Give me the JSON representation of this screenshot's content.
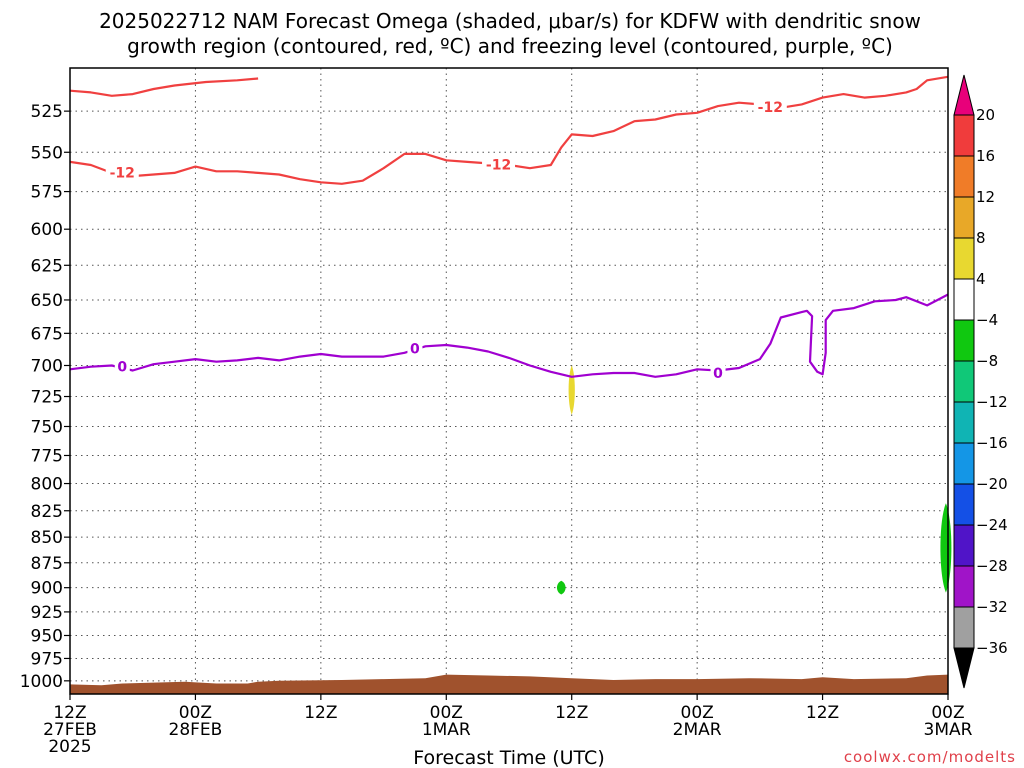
{
  "title_line1": "2025022712 NAM Forecast Omega (shaded, μbar/s) for KDFW with dendritic snow",
  "title_line2": "growth region (contoured, red, ºC) and freezing level (contoured, purple, ºC)",
  "credit": "coolwx.com/modelts",
  "chart_data": {
    "type": "contour",
    "title": "2025022712 NAM Forecast Omega (shaded, μbar/s) for KDFW with dendritic snow growth region (contoured, red, ºC) and freezing level (contoured, purple, ºC)",
    "xlabel": "Forecast Time (UTC)",
    "ylabel": "",
    "x_range_hours": [
      0,
      84
    ],
    "x_ticks": [
      {
        "hour": 0,
        "lines": [
          "12Z",
          "27FEB",
          "2025"
        ]
      },
      {
        "hour": 12,
        "lines": [
          "00Z",
          "28FEB"
        ]
      },
      {
        "hour": 24,
        "lines": [
          "12Z"
        ]
      },
      {
        "hour": 36,
        "lines": [
          "00Z",
          "1MAR"
        ]
      },
      {
        "hour": 48,
        "lines": [
          "12Z"
        ]
      },
      {
        "hour": 60,
        "lines": [
          "00Z",
          "2MAR"
        ]
      },
      {
        "hour": 72,
        "lines": [
          "12Z"
        ]
      },
      {
        "hour": 84,
        "lines": [
          "00Z",
          "3MAR"
        ]
      }
    ],
    "y_axis": "pressure_hPa",
    "y_range": [
      1015,
      500
    ],
    "y_ticks": [
      525,
      550,
      575,
      600,
      625,
      650,
      675,
      700,
      725,
      750,
      775,
      800,
      825,
      850,
      875,
      900,
      925,
      950,
      975,
      1000
    ],
    "grid": true,
    "colorbar": {
      "label_values": [
        20,
        16,
        12,
        8,
        4,
        -4,
        -8,
        -12,
        -16,
        -20,
        -24,
        -28,
        -32,
        -36
      ],
      "colors": [
        "#e8007a",
        "#f03c3c",
        "#f07c28",
        "#e8a828",
        "#e8d830",
        "#ffffff",
        "#10c810",
        "#10c878",
        "#10b4b4",
        "#1496e6",
        "#1450e6",
        "#5014c8",
        "#a014c8",
        "#a0a0a0",
        "#000000"
      ]
    },
    "series": [
      {
        "name": "-12",
        "color": "#f04040",
        "points": [
          [
            0,
            513
          ],
          [
            2,
            514
          ],
          [
            4,
            516
          ],
          [
            6,
            515
          ],
          [
            8,
            512
          ],
          [
            10,
            510
          ],
          [
            13,
            508
          ],
          [
            16,
            507
          ],
          [
            18,
            506
          ]
        ]
      },
      {
        "name": "-12",
        "color": "#f04040",
        "points": [
          [
            0,
            556
          ],
          [
            2,
            558
          ],
          [
            4,
            563
          ],
          [
            6,
            565
          ],
          [
            8,
            564
          ],
          [
            10,
            563
          ],
          [
            12,
            559
          ],
          [
            14,
            562
          ],
          [
            16,
            562
          ],
          [
            18,
            563
          ],
          [
            20,
            564
          ],
          [
            22,
            567
          ],
          [
            24,
            569
          ],
          [
            26,
            570
          ],
          [
            28,
            568
          ],
          [
            30,
            560
          ],
          [
            32,
            551
          ],
          [
            34,
            551
          ],
          [
            36,
            555
          ],
          [
            38,
            556
          ],
          [
            40,
            557
          ],
          [
            42,
            558
          ],
          [
            44,
            560
          ],
          [
            46,
            558
          ],
          [
            47,
            547
          ],
          [
            48,
            539
          ],
          [
            50,
            540
          ],
          [
            52,
            537
          ],
          [
            54,
            531
          ],
          [
            56,
            530
          ],
          [
            58,
            527
          ],
          [
            60,
            526
          ],
          [
            62,
            522
          ],
          [
            64,
            520
          ],
          [
            66,
            521
          ],
          [
            68,
            523
          ],
          [
            70,
            521
          ],
          [
            72,
            517
          ],
          [
            74,
            515
          ],
          [
            76,
            517
          ],
          [
            78,
            516
          ],
          [
            80,
            514
          ],
          [
            81,
            512
          ],
          [
            82,
            507
          ],
          [
            84,
            505
          ]
        ]
      },
      {
        "name": "0",
        "color": "#a000d0",
        "points": [
          [
            0,
            703
          ],
          [
            2,
            701
          ],
          [
            4,
            700
          ],
          [
            6,
            704
          ],
          [
            8,
            699
          ],
          [
            10,
            697
          ],
          [
            12,
            695
          ],
          [
            14,
            697
          ],
          [
            16,
            696
          ],
          [
            18,
            694
          ],
          [
            20,
            696
          ],
          [
            22,
            693
          ],
          [
            24,
            691
          ],
          [
            26,
            693
          ],
          [
            28,
            693
          ],
          [
            30,
            693
          ],
          [
            32,
            690
          ],
          [
            34,
            685
          ],
          [
            36,
            684
          ],
          [
            38,
            686
          ],
          [
            40,
            689
          ],
          [
            42,
            694
          ],
          [
            44,
            700
          ],
          [
            46,
            705
          ],
          [
            48,
            709
          ],
          [
            50,
            707
          ],
          [
            52,
            706
          ],
          [
            54,
            706
          ],
          [
            56,
            709
          ],
          [
            58,
            707
          ],
          [
            60,
            703
          ],
          [
            62,
            704
          ],
          [
            64,
            702
          ],
          [
            66,
            695
          ],
          [
            67,
            683
          ],
          [
            68,
            663
          ],
          [
            70,
            659
          ],
          [
            70.5,
            658
          ],
          [
            71,
            662
          ],
          [
            70.8,
            697
          ],
          [
            71.5,
            705
          ],
          [
            72,
            707
          ],
          [
            72.3,
            690
          ],
          [
            72.3,
            665
          ],
          [
            73,
            658
          ],
          [
            75,
            656
          ],
          [
            77,
            651
          ],
          [
            79,
            650
          ],
          [
            80,
            648
          ],
          [
            82,
            654
          ],
          [
            83,
            650
          ],
          [
            84,
            646
          ]
        ]
      }
    ],
    "contour_labels": [
      {
        "text": "-12",
        "hour": 5,
        "hPa": 562
      },
      {
        "text": "-12",
        "hour": 41,
        "hPa": 557
      },
      {
        "text": "-12",
        "hour": 67,
        "hPa": 522
      },
      {
        "text": "0",
        "hour": 5,
        "hPa": 700
      },
      {
        "text": "0",
        "hour": 33,
        "hPa": 686
      },
      {
        "text": "0",
        "hour": 62,
        "hPa": 705
      }
    ],
    "shaded_regions": [
      {
        "category": "4 to 8",
        "color": "#e8d830",
        "center_hour": 48,
        "hPa_top": 700,
        "hPa_bottom": 740,
        "half_width_hours": 0.4
      },
      {
        "category": "-4 to -8",
        "color": "#10c810",
        "center_hour": 47,
        "hPa_top": 893,
        "hPa_bottom": 907,
        "half_width_hours": 0.55
      },
      {
        "category": "-4 to -8",
        "color": "#10c810",
        "center_hour": 83.8,
        "hPa_top": 818,
        "hPa_bottom": 905,
        "half_width_hours": 0.7
      }
    ],
    "terrain": {
      "color": "#a0522d",
      "points": [
        [
          0,
          1004
        ],
        [
          3,
          1005
        ],
        [
          5,
          1003
        ],
        [
          8,
          1002
        ],
        [
          11,
          1001
        ],
        [
          14,
          1003
        ],
        [
          17,
          1003
        ],
        [
          18,
          1001
        ],
        [
          20,
          1000
        ],
        [
          26,
          999
        ],
        [
          30,
          998
        ],
        [
          34,
          997
        ],
        [
          36,
          993
        ],
        [
          40,
          994
        ],
        [
          44,
          995
        ],
        [
          48,
          997
        ],
        [
          52,
          999
        ],
        [
          56,
          998
        ],
        [
          60,
          998
        ],
        [
          65,
          997
        ],
        [
          70,
          998
        ],
        [
          72,
          996
        ],
        [
          75,
          998
        ],
        [
          80,
          997
        ],
        [
          82,
          994
        ],
        [
          84,
          993
        ]
      ]
    }
  }
}
